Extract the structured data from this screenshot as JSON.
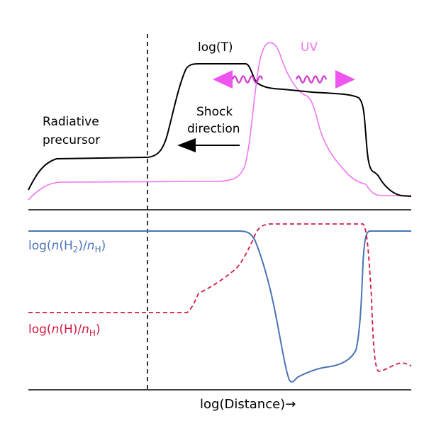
{
  "labels": {
    "log_t": "log(T)",
    "uv": "UV",
    "radiative_1": "Radiative",
    "radiative_2": "precursor",
    "shock_1": "Shock",
    "shock_2": "direction",
    "h2_pre": "log(",
    "h2_n": "n",
    "h2_mid": "(H",
    "h2_sub2": "2",
    "h2_mid2": ")/",
    "h2_n2": "n",
    "h2_subh": "H",
    "h2_close": ")",
    "h_pre": "log(",
    "h_n": "n",
    "h_mid": "(H)/",
    "h_n2": "n",
    "h_subh": "H",
    "h_close": ")",
    "xaxis": "log(Distance)→"
  },
  "colors": {
    "temperature": "#000000",
    "uv": "#ee77ee",
    "uv_arrows": "#ee55ee",
    "h2": "#4a74b5",
    "h": "#d21a42",
    "axis": "#000000"
  }
}
